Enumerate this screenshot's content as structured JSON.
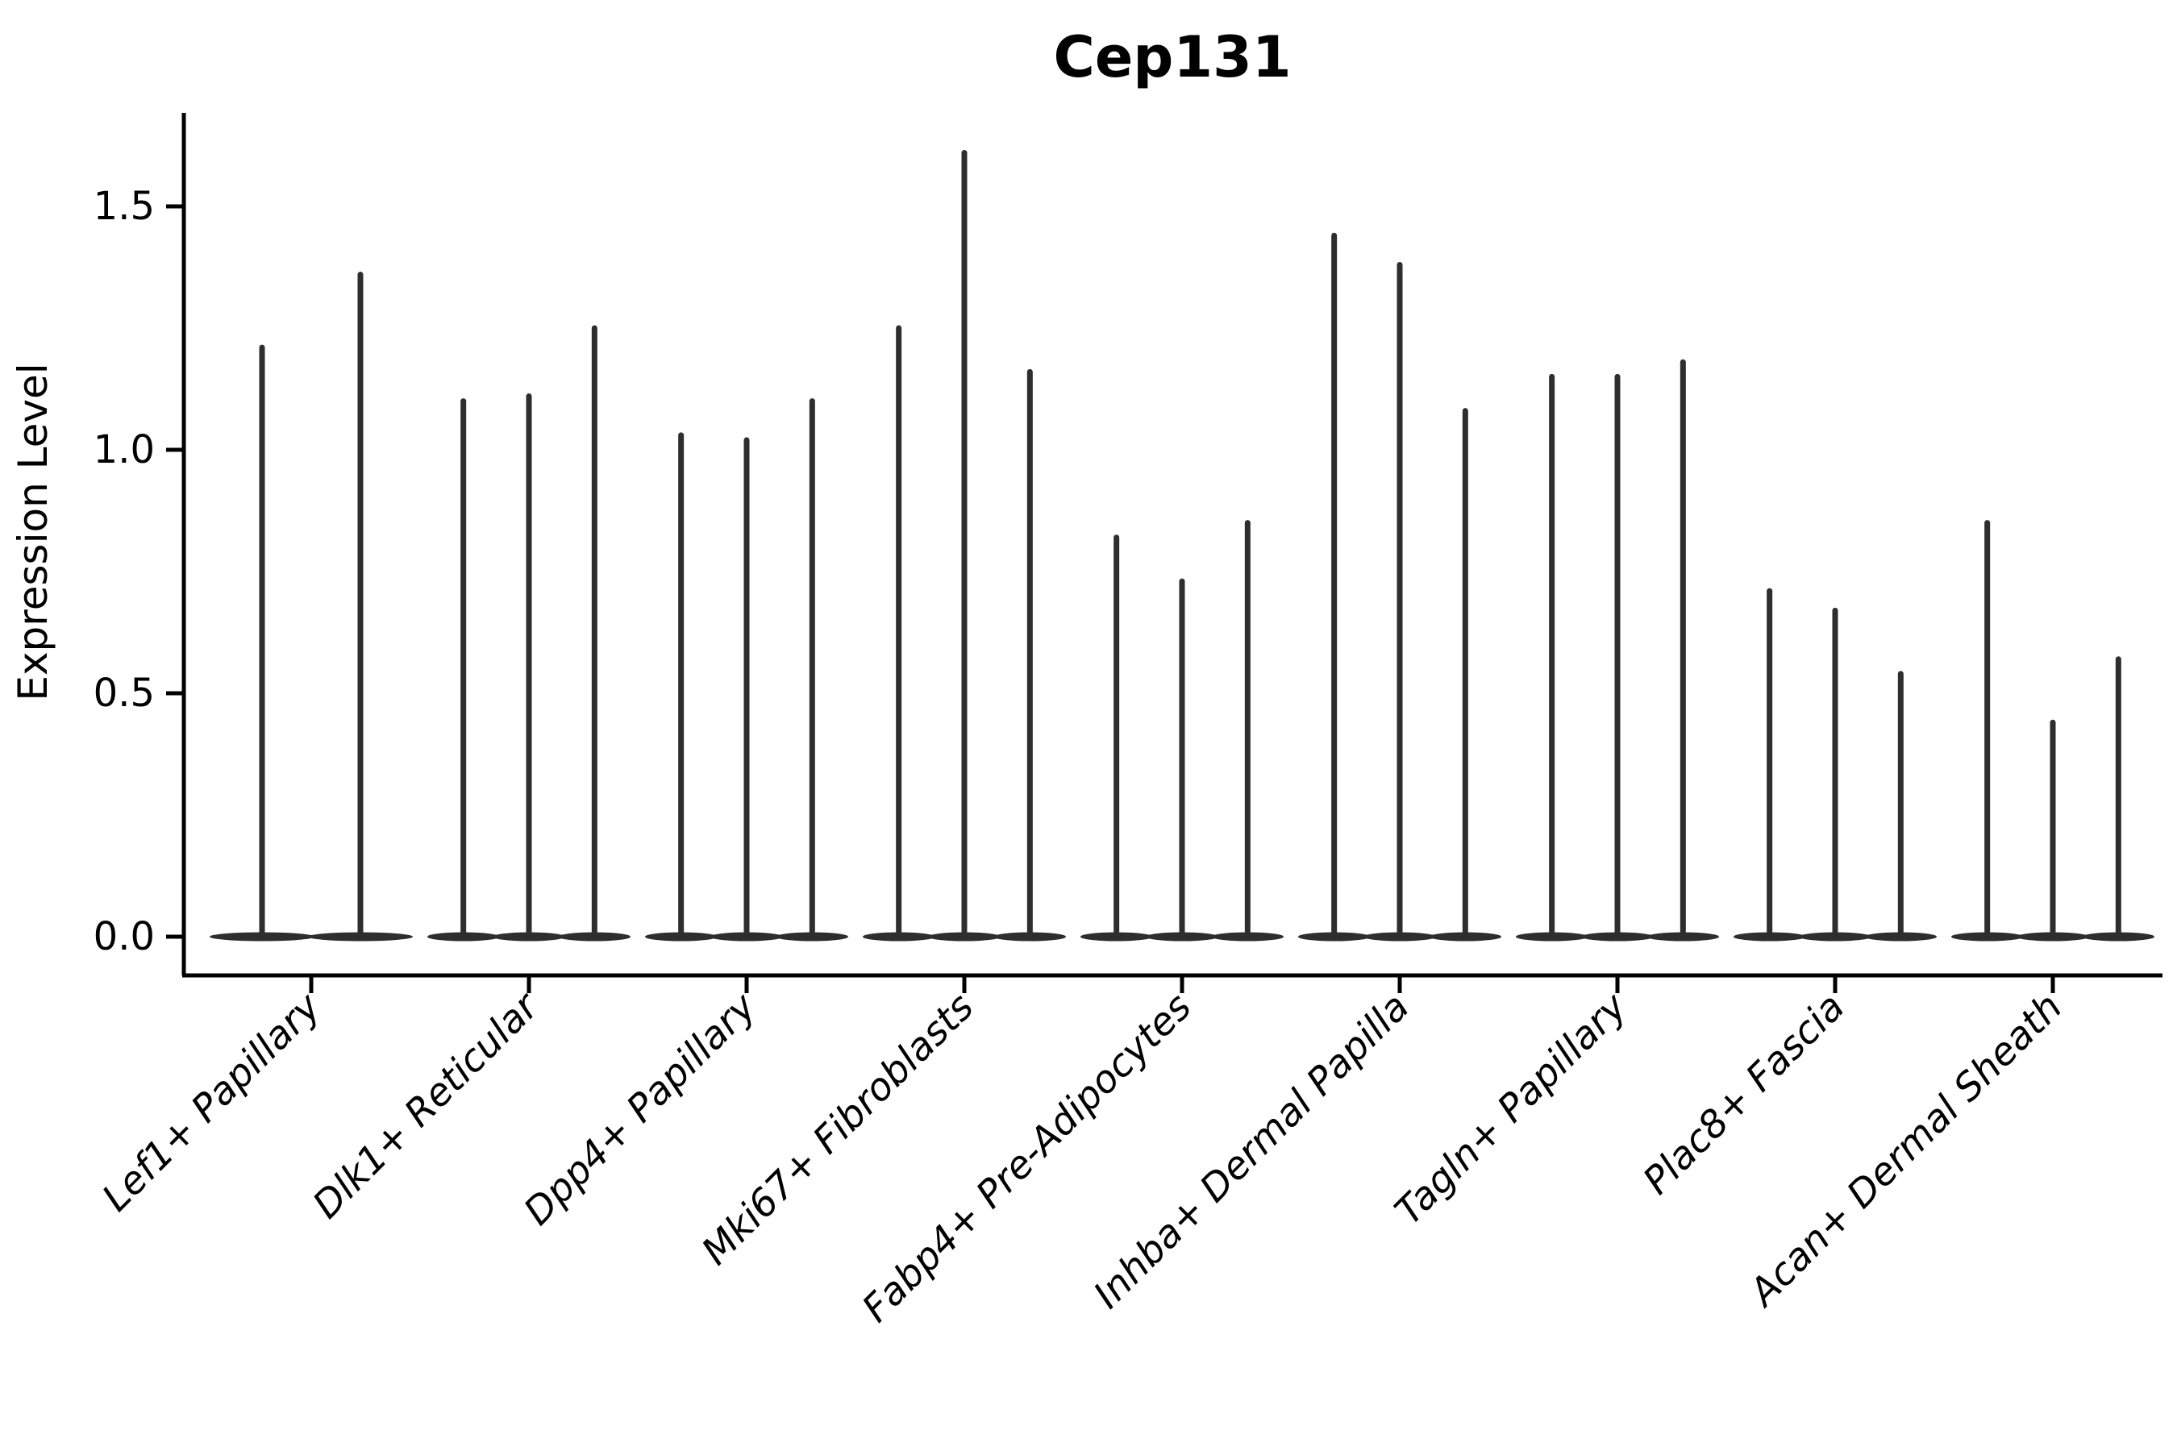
{
  "chart_data": {
    "type": "violin",
    "title": "Cep131",
    "xlabel": "",
    "ylabel": "Expression Level",
    "ylim": [
      -0.08,
      1.69
    ],
    "yticks": [
      0.0,
      0.5,
      1.0,
      1.5
    ],
    "grid": false,
    "legend": "none",
    "x_tick_label_rotation_deg": 45,
    "x_tick_label_style": "italic",
    "violin_color": "#2e2e2e",
    "axis_color": "#000000",
    "background_color": "#ffffff",
    "description": "Violin plot of Cep131 expression; each category holds narrow spike-shaped violins (mass at 0 with a thin line up to the max expression).",
    "categories": [
      "Lef1+ Papillary",
      "Dlk1+ Reticular",
      "Dpp4+ Papillary",
      "Mki67+ Fibroblasts",
      "Fabp4+ Pre-Adipocytes",
      "Inhba+ Dermal Papilla",
      "Tagln+ Papillary",
      "Plac8+ Fascia",
      "Acan+ Dermal Sheath"
    ],
    "groups": [
      {
        "label": "Lef1+ Papillary",
        "violin_max": [
          1.21,
          1.36
        ]
      },
      {
        "label": "Dlk1+ Reticular",
        "violin_max": [
          1.1,
          1.11,
          1.25
        ]
      },
      {
        "label": "Dpp4+ Papillary",
        "violin_max": [
          1.03,
          1.02,
          1.1
        ]
      },
      {
        "label": "Mki67+ Fibroblasts",
        "violin_max": [
          1.25,
          1.61,
          1.16
        ]
      },
      {
        "label": "Fabp4+ Pre-Adipocytes",
        "violin_max": [
          0.82,
          0.73,
          0.85
        ]
      },
      {
        "label": "Inhba+ Dermal Papilla",
        "violin_max": [
          1.44,
          1.38,
          1.08
        ]
      },
      {
        "label": "Tagln+ Papillary",
        "violin_max": [
          1.15,
          1.15,
          1.18
        ]
      },
      {
        "label": "Plac8+ Fascia",
        "violin_max": [
          0.71,
          0.67,
          0.54
        ]
      },
      {
        "label": "Acan+ Dermal Sheath",
        "violin_max": [
          0.85,
          0.44,
          0.57
        ]
      }
    ]
  }
}
